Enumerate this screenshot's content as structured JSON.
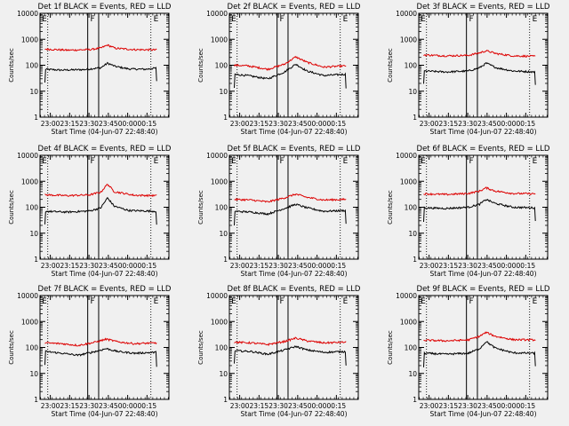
{
  "colors": {
    "background": "#f0f0f0",
    "events": "#000000",
    "lld": "#dd0000",
    "axis": "#000000"
  },
  "chart_data": [
    {
      "type": "line",
      "title": "Det 1f BLACK = Events, RED = LLD",
      "xlabel": "Start Time (04-Jun-07 22:48:40)",
      "ylabel": "Counts/sec",
      "yscale": "log",
      "ylim": [
        1,
        10000
      ],
      "xticks": [
        "23:00",
        "23:15",
        "23:30",
        "23:45",
        "00:00",
        "00:15"
      ],
      "ytick_labels": [
        "1",
        "10",
        "100",
        "1000",
        "10000"
      ],
      "markers": [
        "F",
        "F",
        "E",
        "E"
      ],
      "series": [
        {
          "name": "Events",
          "profile": [
            [
              0,
              70
            ],
            [
              0.15,
              65
            ],
            [
              0.35,
              68
            ],
            [
              0.5,
              80
            ],
            [
              0.56,
              120
            ],
            [
              0.63,
              90
            ],
            [
              0.75,
              72
            ],
            [
              0.9,
              70
            ],
            [
              1,
              78
            ]
          ]
        },
        {
          "name": "LLD",
          "profile": [
            [
              0,
              420
            ],
            [
              0.2,
              380
            ],
            [
              0.4,
              400
            ],
            [
              0.5,
              460
            ],
            [
              0.56,
              600
            ],
            [
              0.63,
              450
            ],
            [
              0.8,
              400
            ],
            [
              1,
              390
            ]
          ]
        }
      ]
    },
    {
      "type": "line",
      "title": "Det 2f BLACK = Events, RED = LLD",
      "xlabel": "Start Time (04-Jun-07 22:48:40)",
      "ylabel": "Counts/sec",
      "yscale": "log",
      "ylim": [
        1,
        10000
      ],
      "xticks": [
        "23:00",
        "23:15",
        "23:30",
        "23:45",
        "00:00",
        "00:15"
      ],
      "ytick_labels": [
        "1",
        "10",
        "100",
        "1000",
        "10000"
      ],
      "markers": [
        "F",
        "F",
        "E",
        "E"
      ],
      "series": [
        {
          "name": "Events",
          "profile": [
            [
              0,
              45
            ],
            [
              0.12,
              40
            ],
            [
              0.3,
              30
            ],
            [
              0.45,
              55
            ],
            [
              0.55,
              110
            ],
            [
              0.65,
              60
            ],
            [
              0.8,
              40
            ],
            [
              1,
              45
            ]
          ]
        },
        {
          "name": "LLD",
          "profile": [
            [
              0,
              100
            ],
            [
              0.12,
              95
            ],
            [
              0.3,
              70
            ],
            [
              0.45,
              110
            ],
            [
              0.55,
              210
            ],
            [
              0.65,
              130
            ],
            [
              0.8,
              85
            ],
            [
              1,
              95
            ]
          ]
        }
      ]
    },
    {
      "type": "line",
      "title": "Det 3f BLACK = Events, RED = LLD",
      "xlabel": "Start Time (04-Jun-07 22:48:40)",
      "ylabel": "Counts/sec",
      "yscale": "log",
      "ylim": [
        1,
        10000
      ],
      "xticks": [
        "23:00",
        "23:15",
        "23:30",
        "23:45",
        "00:00",
        "00:15"
      ],
      "ytick_labels": [
        "1",
        "10",
        "100",
        "1000",
        "10000"
      ],
      "markers": [
        "F",
        "F",
        "E",
        "E"
      ],
      "series": [
        {
          "name": "Events",
          "profile": [
            [
              0,
              60
            ],
            [
              0.2,
              55
            ],
            [
              0.4,
              60
            ],
            [
              0.5,
              80
            ],
            [
              0.56,
              120
            ],
            [
              0.65,
              80
            ],
            [
              0.8,
              60
            ],
            [
              1,
              55
            ]
          ]
        },
        {
          "name": "LLD",
          "profile": [
            [
              0,
              250
            ],
            [
              0.2,
              230
            ],
            [
              0.4,
              240
            ],
            [
              0.5,
              300
            ],
            [
              0.56,
              360
            ],
            [
              0.65,
              280
            ],
            [
              0.8,
              230
            ],
            [
              1,
              220
            ]
          ]
        }
      ]
    },
    {
      "type": "line",
      "title": "Det 4f BLACK = Events, RED = LLD",
      "xlabel": "Start Time (04-Jun-07 22:48:40)",
      "ylabel": "Counts/sec",
      "yscale": "log",
      "ylim": [
        1,
        10000
      ],
      "xticks": [
        "23:00",
        "23:15",
        "23:30",
        "23:45",
        "00:00",
        "00:15"
      ],
      "ytick_labels": [
        "1",
        "10",
        "100",
        "1000",
        "10000"
      ],
      "markers": [
        "F",
        "F",
        "E",
        "E"
      ],
      "series": [
        {
          "name": "Events",
          "profile": [
            [
              0,
              70
            ],
            [
              0.2,
              65
            ],
            [
              0.4,
              72
            ],
            [
              0.5,
              95
            ],
            [
              0.56,
              230
            ],
            [
              0.62,
              110
            ],
            [
              0.75,
              75
            ],
            [
              1,
              70
            ]
          ]
        },
        {
          "name": "LLD",
          "profile": [
            [
              0,
              300
            ],
            [
              0.2,
              280
            ],
            [
              0.4,
              300
            ],
            [
              0.5,
              380
            ],
            [
              0.56,
              780
            ],
            [
              0.62,
              400
            ],
            [
              0.8,
              290
            ],
            [
              1,
              280
            ]
          ]
        }
      ]
    },
    {
      "type": "line",
      "title": "Det 5f BLACK = Events, RED = LLD",
      "xlabel": "Start Time (04-Jun-07 22:48:40)",
      "ylabel": "Counts/sec",
      "yscale": "log",
      "ylim": [
        1,
        10000
      ],
      "xticks": [
        "23:00",
        "23:15",
        "23:30",
        "23:45",
        "00:00",
        "00:15"
      ],
      "ytick_labels": [
        "1",
        "10",
        "100",
        "1000",
        "10000"
      ],
      "markers": [
        "F",
        "F",
        "E",
        "E"
      ],
      "series": [
        {
          "name": "Events",
          "profile": [
            [
              0,
              70
            ],
            [
              0.15,
              65
            ],
            [
              0.3,
              55
            ],
            [
              0.45,
              90
            ],
            [
              0.55,
              130
            ],
            [
              0.65,
              95
            ],
            [
              0.8,
              70
            ],
            [
              1,
              75
            ]
          ]
        },
        {
          "name": "LLD",
          "profile": [
            [
              0,
              200
            ],
            [
              0.15,
              190
            ],
            [
              0.3,
              160
            ],
            [
              0.45,
              230
            ],
            [
              0.55,
              320
            ],
            [
              0.65,
              240
            ],
            [
              0.8,
              190
            ],
            [
              1,
              200
            ]
          ]
        }
      ]
    },
    {
      "type": "line",
      "title": "Det 6f BLACK = Events, RED = LLD",
      "xlabel": "Start Time (04-Jun-07 22:48:40)",
      "ylabel": "Counts/sec",
      "yscale": "log",
      "ylim": [
        1,
        10000
      ],
      "xticks": [
        "23:00",
        "23:15",
        "23:30",
        "23:45",
        "00:00",
        "00:15"
      ],
      "ytick_labels": [
        "1",
        "10",
        "100",
        "1000",
        "10000"
      ],
      "markers": [
        "F",
        "F",
        "E",
        "E"
      ],
      "series": [
        {
          "name": "Events",
          "profile": [
            [
              0,
              95
            ],
            [
              0.2,
              90
            ],
            [
              0.4,
              100
            ],
            [
              0.5,
              130
            ],
            [
              0.56,
              200
            ],
            [
              0.64,
              140
            ],
            [
              0.8,
              100
            ],
            [
              1,
              95
            ]
          ]
        },
        {
          "name": "LLD",
          "profile": [
            [
              0,
              330
            ],
            [
              0.2,
              310
            ],
            [
              0.4,
              340
            ],
            [
              0.5,
              420
            ],
            [
              0.56,
              560
            ],
            [
              0.64,
              420
            ],
            [
              0.8,
              340
            ],
            [
              1,
              330
            ]
          ]
        }
      ]
    },
    {
      "type": "line",
      "title": "Det 7f BLACK = Events, RED = LLD",
      "xlabel": "Start Time (04-Jun-07 22:48:40)",
      "ylabel": "Counts/sec",
      "yscale": "log",
      "ylim": [
        1,
        10000
      ],
      "xticks": [
        "23:00",
        "23:15",
        "23:30",
        "23:45",
        "00:00",
        "00:15"
      ],
      "ytick_labels": [
        "1",
        "10",
        "100",
        "1000",
        "10000"
      ],
      "markers": [
        "F",
        "F",
        "E",
        "E"
      ],
      "series": [
        {
          "name": "Events",
          "profile": [
            [
              0,
              70
            ],
            [
              0.15,
              60
            ],
            [
              0.3,
              50
            ],
            [
              0.45,
              70
            ],
            [
              0.55,
              90
            ],
            [
              0.65,
              70
            ],
            [
              0.8,
              60
            ],
            [
              1,
              65
            ]
          ]
        },
        {
          "name": "LLD",
          "profile": [
            [
              0,
              150
            ],
            [
              0.15,
              140
            ],
            [
              0.3,
              120
            ],
            [
              0.45,
              160
            ],
            [
              0.55,
              210
            ],
            [
              0.65,
              165
            ],
            [
              0.8,
              140
            ],
            [
              1,
              150
            ]
          ]
        }
      ]
    },
    {
      "type": "line",
      "title": "Det 8f BLACK = Events, RED = LLD",
      "xlabel": "Start Time (04-Jun-07 22:48:40)",
      "ylabel": "Counts/sec",
      "yscale": "log",
      "ylim": [
        1,
        10000
      ],
      "xticks": [
        "23:00",
        "23:15",
        "23:30",
        "23:45",
        "00:00",
        "00:15"
      ],
      "ytick_labels": [
        "1",
        "10",
        "100",
        "1000",
        "10000"
      ],
      "markers": [
        "F",
        "F",
        "E",
        "E"
      ],
      "series": [
        {
          "name": "Events",
          "profile": [
            [
              0,
              75
            ],
            [
              0.15,
              70
            ],
            [
              0.3,
              55
            ],
            [
              0.45,
              80
            ],
            [
              0.55,
              110
            ],
            [
              0.65,
              80
            ],
            [
              0.8,
              65
            ],
            [
              1,
              70
            ]
          ]
        },
        {
          "name": "LLD",
          "profile": [
            [
              0,
              160
            ],
            [
              0.15,
              150
            ],
            [
              0.3,
              130
            ],
            [
              0.45,
              170
            ],
            [
              0.55,
              230
            ],
            [
              0.65,
              180
            ],
            [
              0.8,
              150
            ],
            [
              1,
              160
            ]
          ]
        }
      ]
    },
    {
      "type": "line",
      "title": "Det 9f BLACK = Events, RED = LLD",
      "xlabel": "Start Time (04-Jun-07 22:48:40)",
      "ylabel": "Counts/sec",
      "yscale": "log",
      "ylim": [
        1,
        10000
      ],
      "xticks": [
        "23:00",
        "23:15",
        "23:30",
        "23:45",
        "00:00",
        "00:15"
      ],
      "ytick_labels": [
        "1",
        "10",
        "100",
        "1000",
        "10000"
      ],
      "markers": [
        "F",
        "F",
        "E",
        "E"
      ],
      "series": [
        {
          "name": "Events",
          "profile": [
            [
              0,
              60
            ],
            [
              0.2,
              55
            ],
            [
              0.4,
              60
            ],
            [
              0.5,
              90
            ],
            [
              0.56,
              170
            ],
            [
              0.64,
              95
            ],
            [
              0.8,
              62
            ],
            [
              1,
              60
            ]
          ]
        },
        {
          "name": "LLD",
          "profile": [
            [
              0,
              190
            ],
            [
              0.2,
              180
            ],
            [
              0.4,
              195
            ],
            [
              0.5,
              270
            ],
            [
              0.56,
              380
            ],
            [
              0.64,
              270
            ],
            [
              0.8,
              200
            ],
            [
              1,
              195
            ]
          ]
        }
      ]
    }
  ]
}
